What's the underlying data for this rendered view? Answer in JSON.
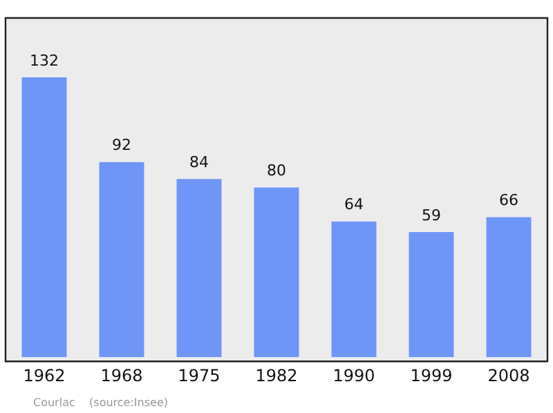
{
  "chart_data": {
    "type": "bar",
    "categories": [
      "1962",
      "1968",
      "1975",
      "1982",
      "1990",
      "1999",
      "2008"
    ],
    "values": [
      132,
      92,
      84,
      80,
      64,
      59,
      66
    ],
    "color": "#6f95f7",
    "data_labels": true,
    "legend": false,
    "annotations": [
      "Courlac    (source:Insee)"
    ]
  }
}
